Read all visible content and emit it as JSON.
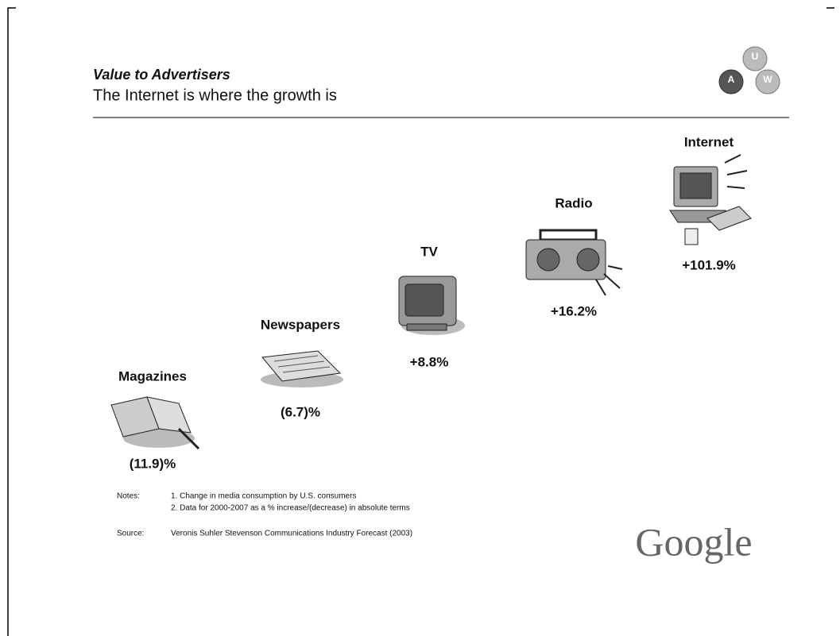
{
  "header": {
    "title": "Value to Advertisers",
    "subtitle": "The Internet is where the growth is"
  },
  "logo_badge": {
    "letters": [
      "U",
      "A",
      "W"
    ]
  },
  "items": [
    {
      "label": "Magazines",
      "change": "(11.9)%"
    },
    {
      "label": "Newspapers",
      "change": "(6.7)%"
    },
    {
      "label": "TV",
      "change": "+8.8%"
    },
    {
      "label": "Radio",
      "change": "+16.2%"
    },
    {
      "label": "Internet",
      "change": "+101.9%"
    }
  ],
  "notes": {
    "label": "Notes:",
    "lines": [
      "1. Change in media consumption by U.S. consumers",
      "2. Data for 2000-2007 as a % increase/(decrease) in absolute terms"
    ]
  },
  "source": {
    "label": "Source:",
    "text": "Veronis Suhler Stevenson Communications Industry Forecast (2003)"
  },
  "brand": "Google"
}
